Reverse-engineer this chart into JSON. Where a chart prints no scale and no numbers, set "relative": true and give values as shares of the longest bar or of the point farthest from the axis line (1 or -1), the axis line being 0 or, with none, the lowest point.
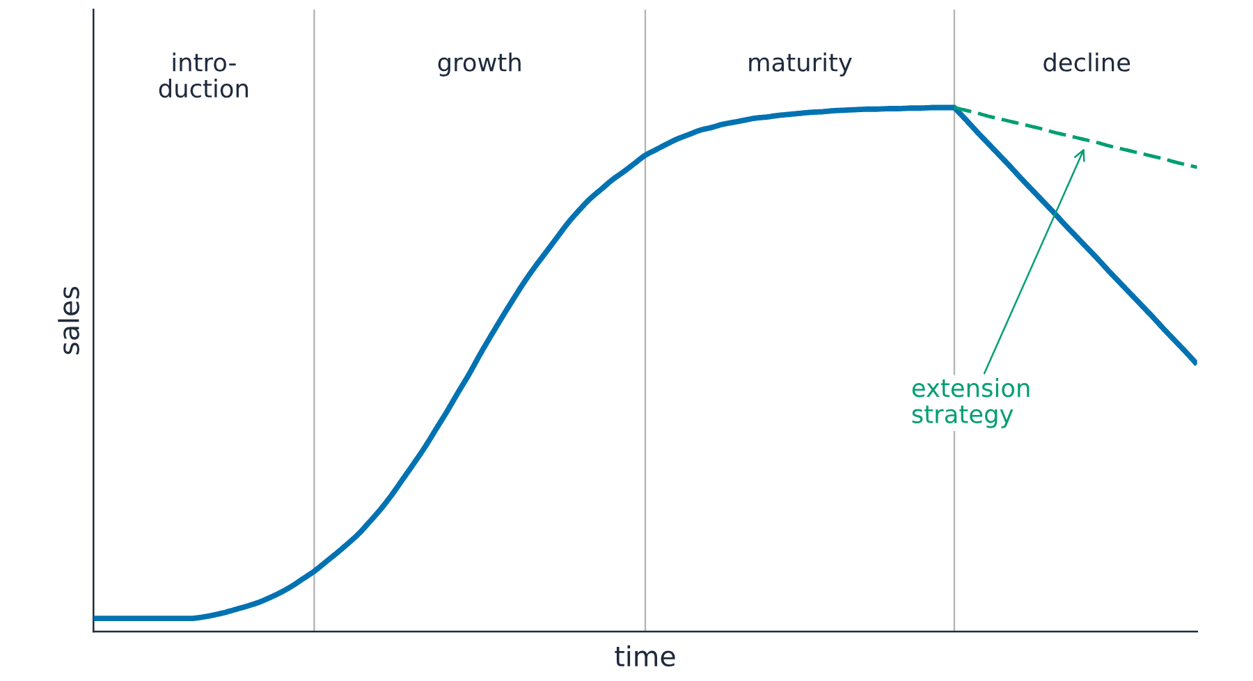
{
  "chart_data": {
    "type": "line",
    "relative": true,
    "xlabel": "time",
    "ylabel": "sales",
    "grid": "x",
    "categories": [
      null,
      null,
      null,
      null,
      null,
      null,
      null,
      null,
      null,
      null,
      null,
      null,
      null,
      null,
      null,
      null,
      null,
      null,
      null,
      null,
      null,
      null,
      null,
      null,
      null,
      null,
      null,
      null,
      null,
      null,
      null,
      null,
      null,
      null,
      null,
      null,
      null,
      null,
      null,
      null,
      null,
      null,
      null,
      null,
      null,
      null,
      null,
      null,
      null,
      null,
      null,
      null,
      null,
      null,
      null,
      null,
      null,
      null,
      null,
      null,
      null,
      null,
      null,
      null,
      null,
      null,
      null,
      null,
      null,
      null,
      null,
      null,
      null,
      null,
      null,
      null,
      null,
      null,
      null,
      null,
      null,
      null,
      null,
      null,
      null,
      null,
      null,
      null,
      null,
      null,
      null,
      null,
      null,
      null,
      null,
      null,
      null,
      null,
      null,
      null,
      null
    ],
    "series": [
      {
        "color": "#0072b2",
        "line_style": "solid",
        "values": [
          0.025,
          0.025,
          0.025,
          0.025,
          0.025,
          0.025,
          0.025,
          0.025,
          0.025,
          0.025,
          0.028,
          0.032,
          0.037,
          0.043,
          0.049,
          0.056,
          0.065,
          0.075,
          0.087,
          0.101,
          0.115,
          0.132,
          0.149,
          0.167,
          0.186,
          0.209,
          0.233,
          0.26,
          0.29,
          0.32,
          0.351,
          0.385,
          0.419,
          0.455,
          0.49,
          0.528,
          0.564,
          0.599,
          0.633,
          0.666,
          0.696,
          0.724,
          0.752,
          0.78,
          0.804,
          0.826,
          0.844,
          0.862,
          0.877,
          0.893,
          0.909,
          0.92,
          0.931,
          0.941,
          0.949,
          0.957,
          0.962,
          0.968,
          0.972,
          0.976,
          0.98,
          0.982,
          0.985,
          0.987,
          0.989,
          0.991,
          0.992,
          0.994,
          0.995,
          0.996,
          0.997,
          0.997,
          0.998,
          0.998,
          0.999,
          0.999,
          1.0,
          1.0,
          1.0,
          0.978,
          0.955,
          0.933,
          0.911,
          0.889,
          0.866,
          0.844,
          0.822,
          0.8,
          0.777,
          0.755,
          0.733,
          0.711,
          0.688,
          0.666,
          0.644,
          0.622,
          0.6,
          0.577,
          0.555,
          0.533,
          0.51
        ]
      },
      {
        "name": "extension\nstrategy",
        "color": "#009e73",
        "line_style": "dashed",
        "values": [
          null,
          null,
          null,
          null,
          null,
          null,
          null,
          null,
          null,
          null,
          null,
          null,
          null,
          null,
          null,
          null,
          null,
          null,
          null,
          null,
          null,
          null,
          null,
          null,
          null,
          null,
          null,
          null,
          null,
          null,
          null,
          null,
          null,
          null,
          null,
          null,
          null,
          null,
          null,
          null,
          null,
          null,
          null,
          null,
          null,
          null,
          null,
          null,
          null,
          null,
          null,
          null,
          null,
          null,
          null,
          null,
          null,
          null,
          null,
          null,
          null,
          null,
          null,
          null,
          null,
          null,
          null,
          null,
          null,
          null,
          null,
          null,
          null,
          null,
          null,
          null,
          null,
          null,
          1.0,
          0.995,
          0.99,
          0.984,
          0.979,
          0.974,
          0.969,
          0.964,
          0.959,
          0.953,
          0.948,
          0.943,
          0.938,
          0.933,
          0.927,
          0.922,
          0.917,
          0.912,
          0.907,
          0.902,
          0.896,
          0.891,
          0.886
        ]
      }
    ],
    "annotations": [
      "intro-\nduction",
      "growth",
      "maturity",
      "decline"
    ]
  }
}
